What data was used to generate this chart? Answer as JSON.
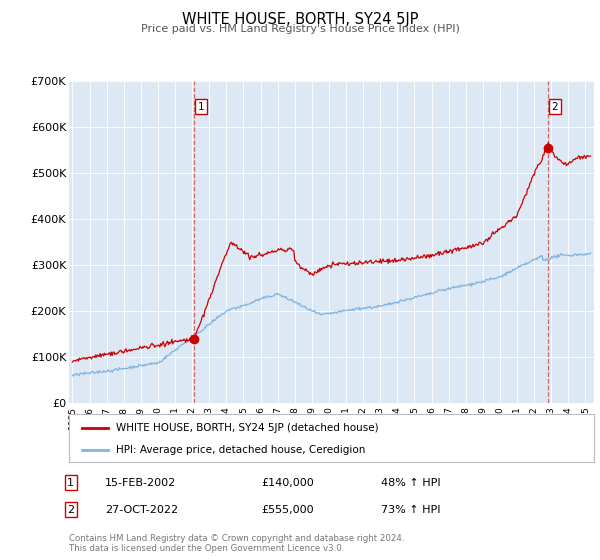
{
  "title": "WHITE HOUSE, BORTH, SY24 5JP",
  "subtitle": "Price paid vs. HM Land Registry's House Price Index (HPI)",
  "background_color": "#dce9f5",
  "plot_bg_color": "#dce9f5",
  "outer_bg_color": "#ffffff",
  "red_line_color": "#cc0000",
  "blue_line_color": "#7fb3e0",
  "marker1_date_x": 2002.12,
  "marker1_y": 140000,
  "marker2_date_x": 2022.82,
  "marker2_y": 555000,
  "yticks": [
    0,
    100000,
    200000,
    300000,
    400000,
    500000,
    600000,
    700000
  ],
  "ytick_labels": [
    "£0",
    "£100K",
    "£200K",
    "£300K",
    "£400K",
    "£500K",
    "£600K",
    "£700K"
  ],
  "xmin": 1994.8,
  "xmax": 2025.5,
  "ymin": 0,
  "ymax": 700000,
  "legend_label_red": "WHITE HOUSE, BORTH, SY24 5JP (detached house)",
  "legend_label_blue": "HPI: Average price, detached house, Ceredigion",
  "annotation1_label": "1",
  "annotation1_date": "15-FEB-2002",
  "annotation1_price": "£140,000",
  "annotation1_hpi": "48% ↑ HPI",
  "annotation2_label": "2",
  "annotation2_date": "27-OCT-2022",
  "annotation2_price": "£555,000",
  "annotation2_hpi": "73% ↑ HPI",
  "footer": "Contains HM Land Registry data © Crown copyright and database right 2024.\nThis data is licensed under the Open Government Licence v3.0."
}
